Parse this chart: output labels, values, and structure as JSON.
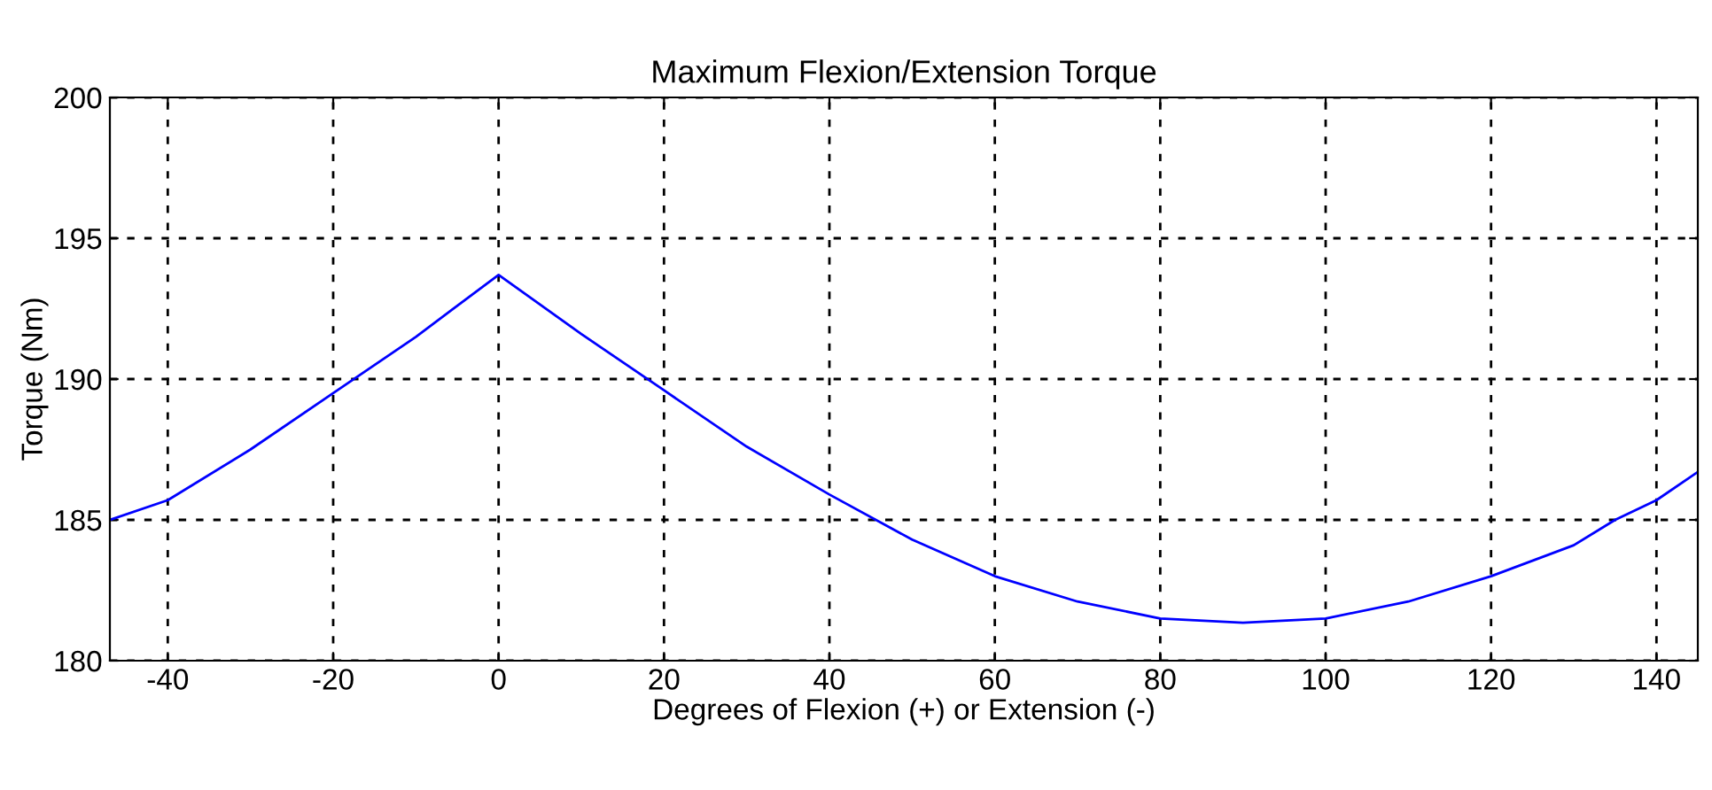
{
  "chart_data": {
    "type": "line",
    "title": "Maximum Flexion/Extension Torque",
    "xlabel": "Degrees of Flexion (+) or Extension (-)",
    "ylabel": "Torque (Nm)",
    "x": [
      -47,
      -40,
      -30,
      -20,
      -10,
      0,
      10,
      20,
      30,
      40,
      50,
      60,
      70,
      80,
      90,
      100,
      110,
      120,
      130,
      135,
      140,
      145
    ],
    "series": [
      {
        "color": "#0000ff",
        "values": [
          185.0,
          185.7,
          187.5,
          189.5,
          191.5,
          193.7,
          191.6,
          189.6,
          187.6,
          185.9,
          184.3,
          183.0,
          182.1,
          181.5,
          181.35,
          181.5,
          182.1,
          183.0,
          184.1,
          185.0,
          185.7,
          186.7
        ]
      }
    ],
    "xlim": [
      -47,
      145
    ],
    "ylim": [
      180,
      200
    ],
    "xticks": [
      -40,
      -20,
      0,
      20,
      40,
      60,
      80,
      100,
      120,
      140
    ],
    "yticks": [
      180,
      185,
      190,
      195,
      200
    ],
    "grid": true,
    "line_style": "solid",
    "marker": "none"
  }
}
